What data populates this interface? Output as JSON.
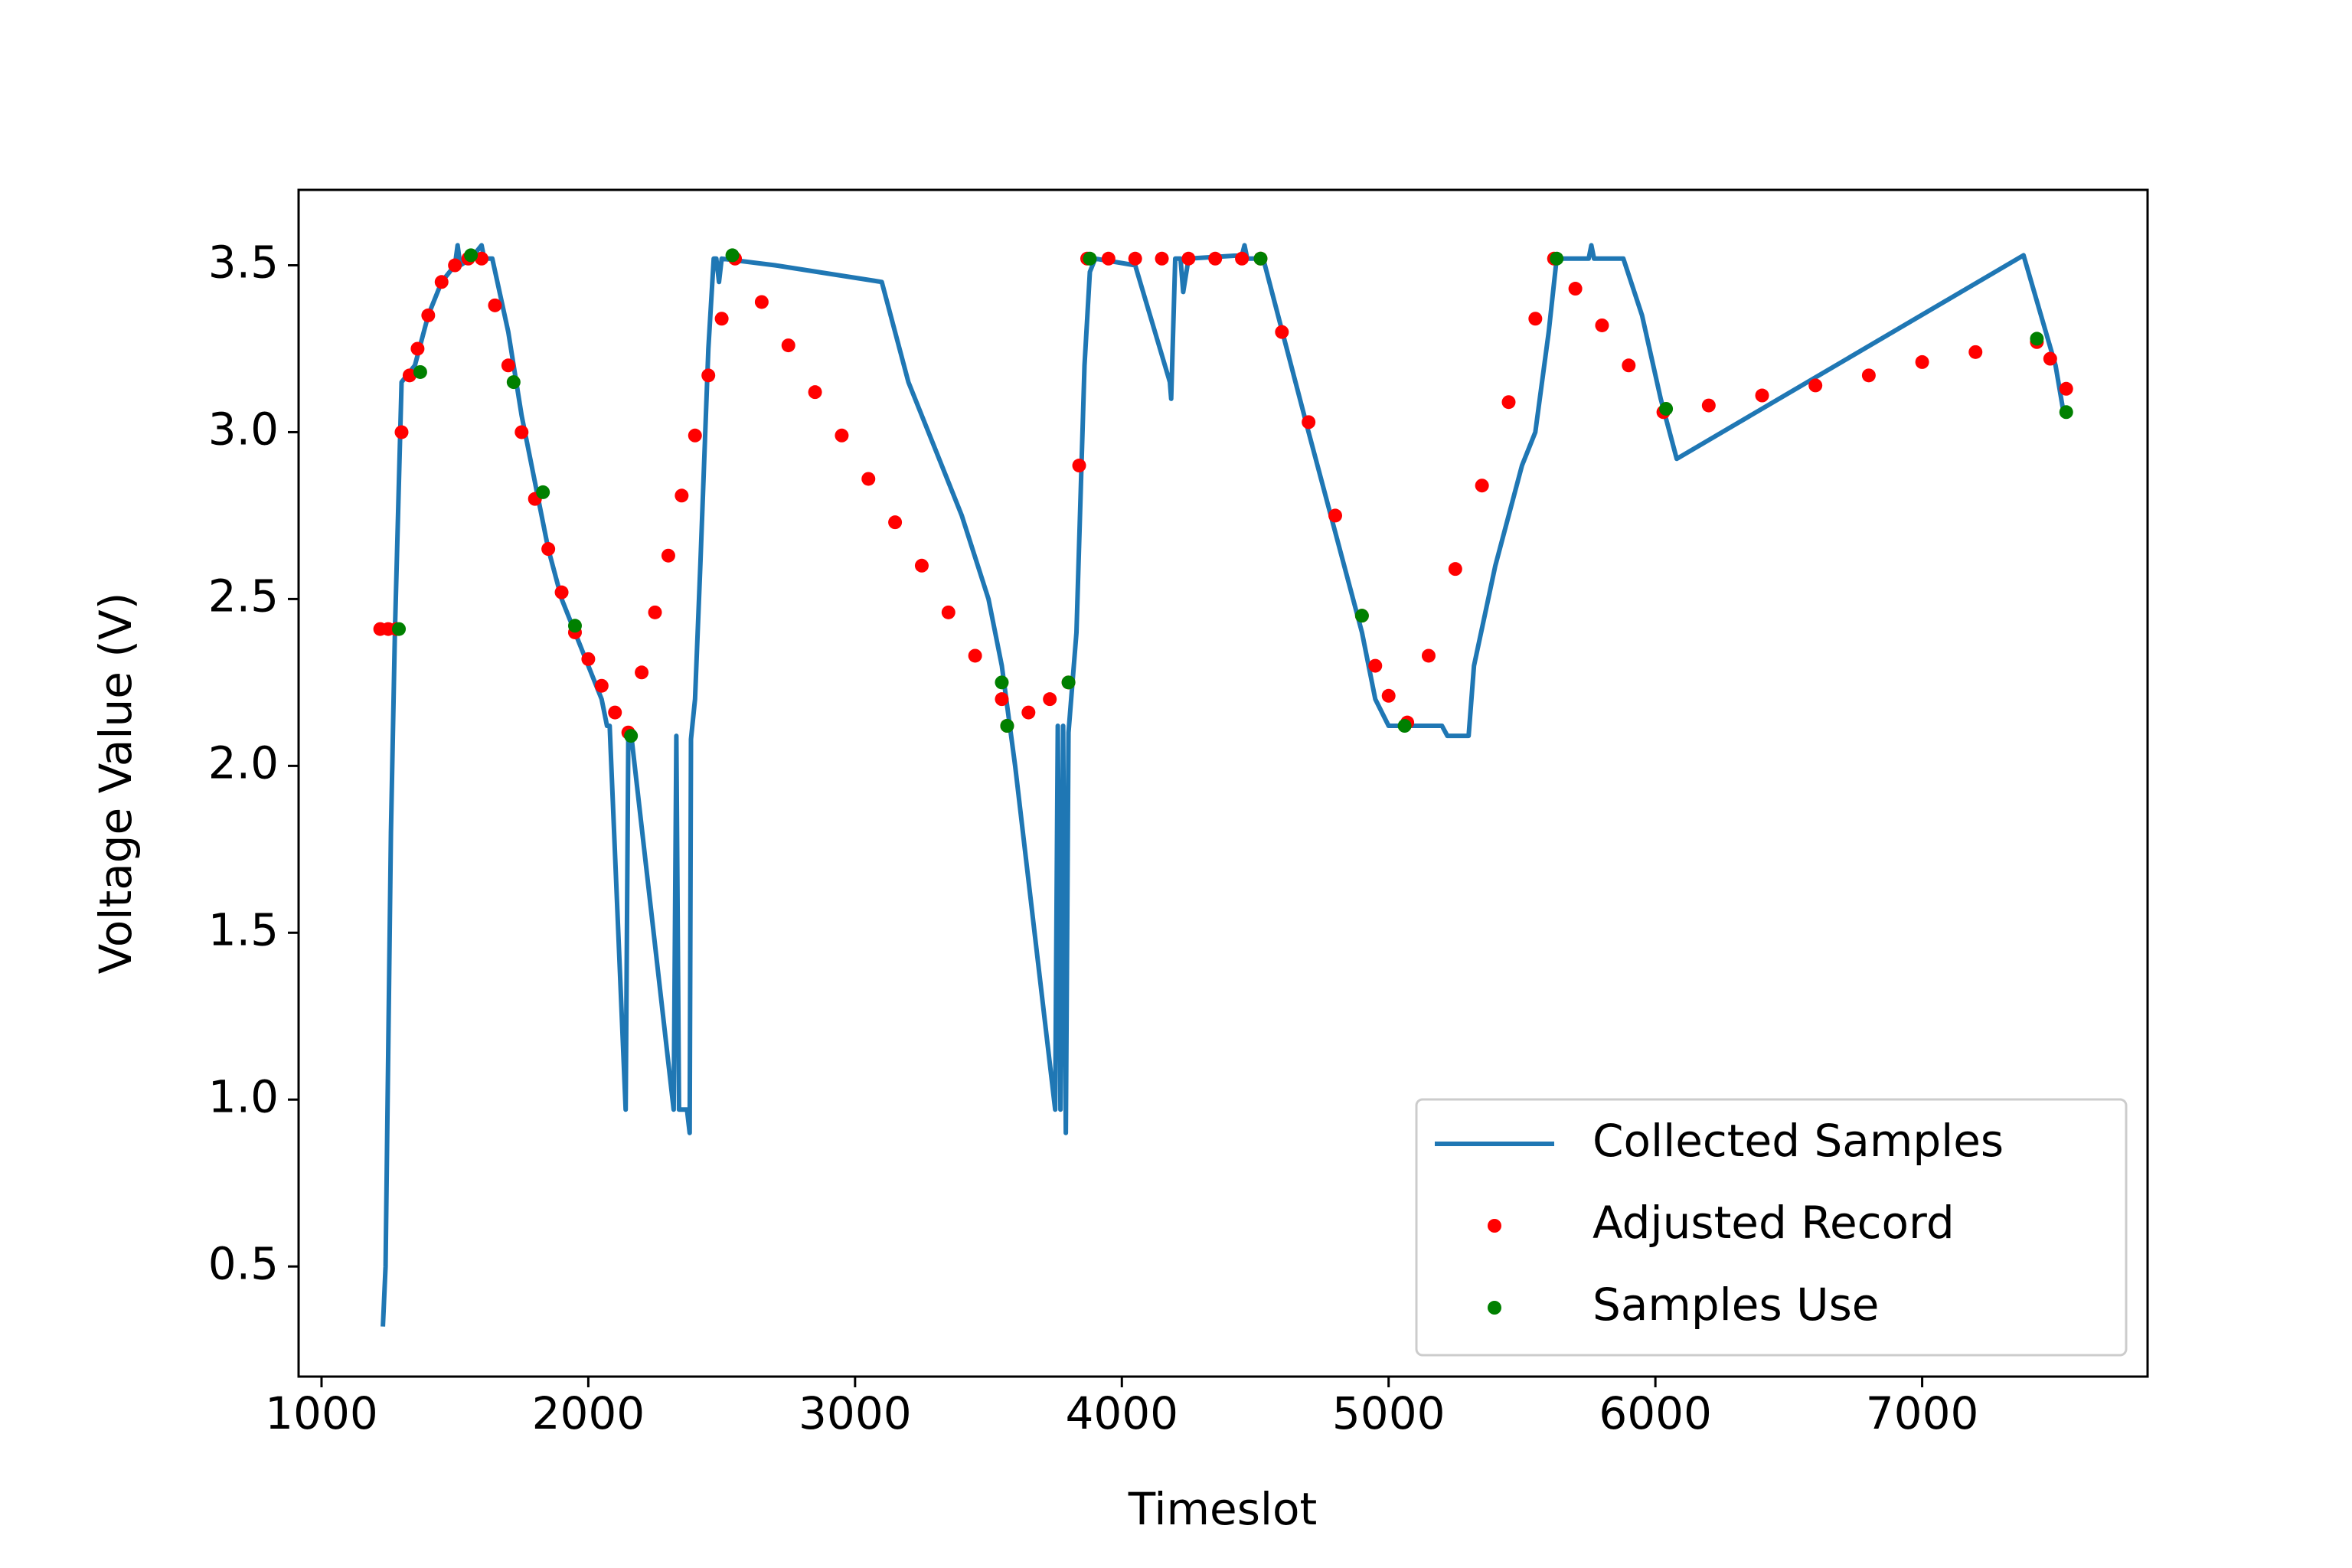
{
  "chart_data": {
    "type": "line",
    "xlabel": "Timeslot",
    "ylabel": "Voltage Value (V)",
    "xlim": [
      914,
      7845
    ],
    "ylim": [
      0.17,
      3.726
    ],
    "xticks": [
      1000,
      2000,
      3000,
      4000,
      5000,
      6000,
      7000
    ],
    "yticks": [
      0.5,
      {
        "value": 1,
        "label": "1.0"
      },
      1.5,
      {
        "value": 2,
        "label": "2.0"
      },
      2.5,
      {
        "value": 3,
        "label": "3.0"
      },
      3.5
    ],
    "legend": "lower right",
    "series": [
      {
        "name": "Collected Samples",
        "type": "line",
        "color": "#1f77b4",
        "x": [
          1230,
          1240,
          1260,
          1275,
          1300,
          1350,
          1400,
          1450,
          1500,
          1510,
          1520,
          1560,
          1600,
          1610,
          1640,
          1700,
          1750,
          1800,
          1850,
          1900,
          1950,
          2000,
          2050,
          2070,
          2080,
          2140,
          2150,
          2160,
          2320,
          2330,
          2340,
          2370,
          2380,
          2385,
          2400,
          2420,
          2450,
          2470,
          2480,
          2490,
          2500,
          2700,
          3100,
          3150,
          3200,
          3300,
          3400,
          3500,
          3550,
          3600,
          3750,
          3760,
          3770,
          3780,
          3790,
          3800,
          3830,
          3860,
          3880,
          3900,
          4050,
          4180,
          4185,
          4200,
          4220,
          4230,
          4250,
          4450,
          4460,
          4470,
          4530,
          4700,
          4900,
          4950,
          5000,
          5200,
          5220,
          5300,
          5320,
          5400,
          5450,
          5500,
          5550,
          5600,
          5630,
          5750,
          5760,
          5770,
          5880,
          5950,
          6020,
          6080,
          7380,
          7500,
          7530
        ],
        "values": [
          0.32,
          0.5,
          1.8,
          2.4,
          3.15,
          3.2,
          3.35,
          3.45,
          3.5,
          3.56,
          3.5,
          3.52,
          3.56,
          3.52,
          3.52,
          3.3,
          3.05,
          2.85,
          2.65,
          2.5,
          2.4,
          2.3,
          2.2,
          2.12,
          2.12,
          0.97,
          2.1,
          2.1,
          0.97,
          2.09,
          0.97,
          0.97,
          0.9,
          2.08,
          2.2,
          2.6,
          3.25,
          3.52,
          3.52,
          3.45,
          3.52,
          3.5,
          3.45,
          3.3,
          3.15,
          2.95,
          2.75,
          2.5,
          2.3,
          2.0,
          0.97,
          2.12,
          0.97,
          2.12,
          0.9,
          2.1,
          2.4,
          3.2,
          3.48,
          3.52,
          3.5,
          3.15,
          3.1,
          3.52,
          3.52,
          3.42,
          3.52,
          3.53,
          3.56,
          3.52,
          3.52,
          3.0,
          2.4,
          2.2,
          2.12,
          2.12,
          2.09,
          2.09,
          2.3,
          2.6,
          2.75,
          2.9,
          3.0,
          3.3,
          3.52,
          3.52,
          3.56,
          3.52,
          3.52,
          3.35,
          3.1,
          2.92,
          3.53,
          3.2,
          3.06
        ]
      },
      {
        "name": "Adjusted Record",
        "type": "scatter",
        "color": "#ff0000",
        "x": [
          1220,
          1250,
          1280,
          1300,
          1330,
          1360,
          1400,
          1450,
          1500,
          1550,
          1600,
          1650,
          1700,
          1750,
          1800,
          1850,
          1900,
          1950,
          2000,
          2050,
          2100,
          2150,
          2200,
          2250,
          2300,
          2350,
          2400,
          2450,
          2500,
          2550,
          2650,
          2750,
          2850,
          2950,
          3050,
          3150,
          3250,
          3350,
          3450,
          3550,
          3570,
          3650,
          3730,
          3800,
          3840,
          3870,
          3950,
          4050,
          4150,
          4250,
          4350,
          4450,
          4520,
          4600,
          4700,
          4800,
          4900,
          4950,
          5000,
          5070,
          5150,
          5250,
          5350,
          5450,
          5550,
          5620,
          5700,
          5800,
          5900,
          6030,
          6200,
          6400,
          6600,
          6800,
          7000,
          7200,
          7430,
          7480,
          7540
        ],
        "values": [
          2.41,
          2.41,
          2.41,
          3.0,
          3.17,
          3.25,
          3.35,
          3.45,
          3.5,
          3.52,
          3.52,
          3.38,
          3.2,
          3.0,
          2.8,
          2.65,
          2.52,
          2.4,
          2.32,
          2.24,
          2.16,
          2.1,
          2.28,
          2.46,
          2.63,
          2.81,
          2.99,
          3.17,
          3.34,
          3.52,
          3.39,
          3.26,
          3.12,
          2.99,
          2.86,
          2.73,
          2.6,
          2.46,
          2.33,
          2.2,
          2.12,
          2.16,
          2.2,
          2.25,
          2.9,
          3.52,
          3.52,
          3.52,
          3.52,
          3.52,
          3.52,
          3.52,
          3.52,
          3.3,
          3.03,
          2.75,
          2.45,
          2.3,
          2.21,
          2.13,
          2.33,
          2.59,
          2.84,
          3.09,
          3.34,
          3.52,
          3.43,
          3.32,
          3.2,
          3.06,
          3.08,
          3.11,
          3.14,
          3.17,
          3.21,
          3.24,
          3.27,
          3.22,
          3.13
        ]
      },
      {
        "name": "Samples Use",
        "type": "scatter",
        "color": "#008000",
        "x": [
          1290,
          1370,
          1560,
          1720,
          1830,
          1950,
          2160,
          2540,
          3550,
          3570,
          3800,
          3880,
          4520,
          4900,
          5060,
          5630,
          6040,
          7430,
          7540
        ],
        "values": [
          2.41,
          3.18,
          3.53,
          3.15,
          2.82,
          2.42,
          2.09,
          3.53,
          2.25,
          2.12,
          2.25,
          3.52,
          3.52,
          2.45,
          2.12,
          3.52,
          3.07,
          3.28,
          3.06
        ]
      }
    ]
  }
}
